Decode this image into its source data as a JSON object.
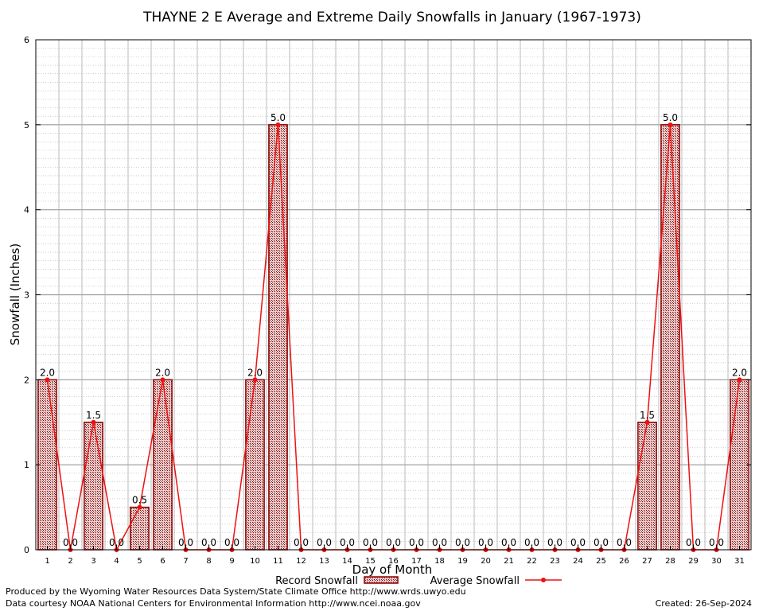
{
  "chart_data": {
    "type": "bar",
    "title": "THAYNE 2 E Average and Extreme Daily Snowfalls in January (1967-1973)",
    "xlabel": "Day of Month",
    "ylabel": "Snowfall (Inches)",
    "ylim": [
      0,
      6
    ],
    "yticks": [
      "0",
      "1",
      "2",
      "3",
      "4",
      "5",
      "6"
    ],
    "grid": true,
    "legend_position": "bottom",
    "categories": [
      "1",
      "2",
      "3",
      "4",
      "5",
      "6",
      "7",
      "8",
      "9",
      "10",
      "11",
      "12",
      "13",
      "14",
      "15",
      "16",
      "17",
      "18",
      "19",
      "20",
      "21",
      "22",
      "23",
      "24",
      "25",
      "26",
      "27",
      "28",
      "29",
      "30",
      "31"
    ],
    "series": [
      {
        "name": "Record Snowfall",
        "kind": "bar",
        "color": "#8b0000",
        "values": [
          2.0,
          0.0,
          1.5,
          0.0,
          0.5,
          2.0,
          0.0,
          0.0,
          0.0,
          2.0,
          5.0,
          0.0,
          0.0,
          0.0,
          0.0,
          0.0,
          0.0,
          0.0,
          0.0,
          0.0,
          0.0,
          0.0,
          0.0,
          0.0,
          0.0,
          0.0,
          1.5,
          5.0,
          0.0,
          0.0,
          2.0
        ],
        "labels": [
          "2.0",
          "0.0",
          "1.5",
          "0.0",
          "0.5",
          "2.0",
          "0.0",
          "0.0",
          "0.0",
          "2.0",
          "5.0",
          "0.0",
          "0.0",
          "0.0",
          "0.0",
          "0.0",
          "0.0",
          "0.0",
          "0.0",
          "0.0",
          "0.0",
          "0.0",
          "0.0",
          "0.0",
          "0.0",
          "0.0",
          "1.5",
          "5.0",
          "0.0",
          "0.0",
          "2.0"
        ]
      },
      {
        "name": "Average Snowfall",
        "kind": "line",
        "color": "#ee1111",
        "values": [
          2.0,
          0.0,
          1.5,
          0.0,
          0.5,
          2.0,
          0.0,
          0.0,
          0.0,
          2.0,
          5.0,
          0.0,
          0.0,
          0.0,
          0.0,
          0.0,
          0.0,
          0.0,
          0.0,
          0.0,
          0.0,
          0.0,
          0.0,
          0.0,
          0.0,
          0.0,
          1.5,
          5.0,
          0.0,
          0.0,
          2.0
        ]
      }
    ]
  },
  "footer": {
    "producer": "Produced by the Wyoming Water Resources Data System/State Climate Office http://www.wrds.uwyo.edu",
    "courtesy": "Data courtesy NOAA National Centers for Environmental Information http://www.ncei.noaa.gov",
    "created": "Created:  26-Sep-2024"
  }
}
